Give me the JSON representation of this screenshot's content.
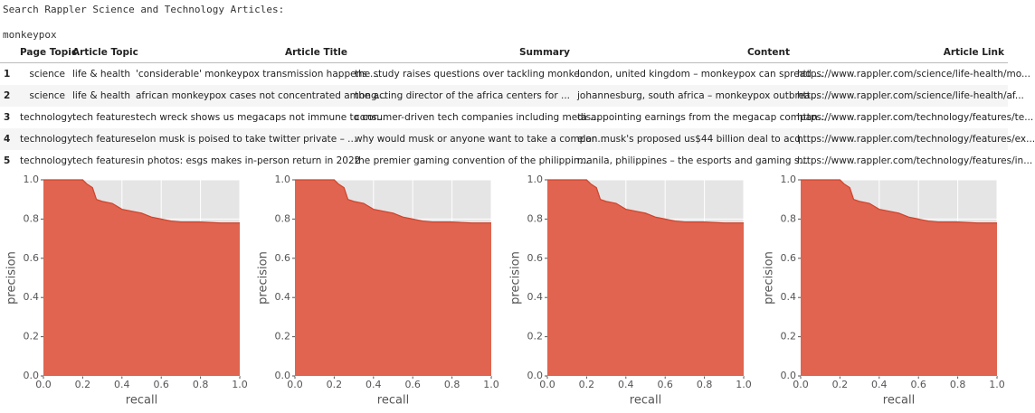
{
  "header": {
    "prompt": "Search Rappler Science and Technology Articles:",
    "query": "monkeypox"
  },
  "table": {
    "columns": [
      "Page Topic",
      "Article Topic",
      "Article Title",
      "Summary",
      "Content",
      "Article Link"
    ],
    "rows": [
      {
        "index": 1,
        "cells": [
          "science",
          "life & health",
          "'considerable' monkeypox transmission happens ...",
          "the study raises questions over tackling monke...",
          "london, united kingdom – monkeypox can spread ...",
          "https://www.rappler.com/science/life-health/mo..."
        ]
      },
      {
        "index": 2,
        "cells": [
          "science",
          "life & health",
          "african monkeypox cases not concentrated among...",
          "the acting director of the africa centers for ...",
          "johannesburg, south africa – monkeypox outbrea...",
          "https://www.rappler.com/science/life-health/af..."
        ]
      },
      {
        "index": 3,
        "cells": [
          "technology",
          "tech features",
          "tech wreck shows us megacaps not immune to cor...",
          "consumer-driven tech companies including meta ...",
          "disappointing earnings from the megacap compan...",
          "https://www.rappler.com/technology/features/te..."
        ]
      },
      {
        "index": 4,
        "cells": [
          "technology",
          "tech features",
          "elon musk is poised to take twitter private – ...",
          "why would musk or anyone want to take a compan...",
          "elon musk's proposed us$44 billion deal to acq...",
          "https://www.rappler.com/technology/features/ex..."
        ]
      },
      {
        "index": 5,
        "cells": [
          "technology",
          "tech features",
          "in photos: esgs makes in-person return in 2022",
          "the premier gaming convention of the philippin...",
          "manila, philippines – the esports and gaming s...",
          "https://www.rappler.com/technology/features/in..."
        ]
      }
    ]
  },
  "chart_data": [
    {
      "type": "area",
      "xlabel": "recall",
      "ylabel": "precision",
      "color": "#e0644f",
      "grid": true,
      "x": [
        0,
        0.05,
        0.1,
        0.15,
        0.2,
        0.22,
        0.25,
        0.27,
        0.3,
        0.35,
        0.4,
        0.45,
        0.5,
        0.55,
        0.6,
        0.65,
        0.7,
        0.8,
        0.9,
        1.0
      ],
      "values": [
        1,
        1,
        1,
        1,
        1,
        0.98,
        0.96,
        0.9,
        0.89,
        0.88,
        0.85,
        0.84,
        0.83,
        0.81,
        0.8,
        0.79,
        0.785,
        0.785,
        0.78,
        0.78
      ],
      "xlim": [
        0,
        1
      ],
      "ylim": [
        0,
        1
      ],
      "xticks": [
        {
          "value": 0,
          "label": "0.0"
        },
        0.2,
        0.4,
        0.6,
        0.8,
        {
          "value": 1,
          "label": "1.0"
        }
      ],
      "yticks": [
        {
          "value": 0,
          "label": "0.0"
        },
        0.2,
        0.4,
        0.6,
        0.8,
        {
          "value": 1,
          "label": "1.0"
        }
      ]
    },
    {
      "type": "area",
      "xlabel": "recall",
      "ylabel": "precision",
      "color": "#e0644f",
      "grid": true,
      "x": [
        0,
        0.05,
        0.1,
        0.15,
        0.2,
        0.22,
        0.25,
        0.27,
        0.3,
        0.35,
        0.4,
        0.45,
        0.5,
        0.55,
        0.6,
        0.65,
        0.7,
        0.8,
        0.9,
        1.0
      ],
      "values": [
        1,
        1,
        1,
        1,
        1,
        0.98,
        0.96,
        0.9,
        0.89,
        0.88,
        0.85,
        0.84,
        0.83,
        0.81,
        0.8,
        0.79,
        0.785,
        0.785,
        0.78,
        0.78
      ],
      "xlim": [
        0,
        1
      ],
      "ylim": [
        0,
        1
      ],
      "xticks": [
        {
          "value": 0,
          "label": "0.0"
        },
        0.2,
        0.4,
        0.6,
        0.8,
        {
          "value": 1,
          "label": "1.0"
        }
      ],
      "yticks": [
        {
          "value": 0,
          "label": "0.0"
        },
        0.2,
        0.4,
        0.6,
        0.8,
        {
          "value": 1,
          "label": "1.0"
        }
      ]
    },
    {
      "type": "area",
      "xlabel": "recall",
      "ylabel": "precision",
      "color": "#e0644f",
      "grid": true,
      "x": [
        0,
        0.05,
        0.1,
        0.15,
        0.2,
        0.22,
        0.25,
        0.27,
        0.3,
        0.35,
        0.4,
        0.45,
        0.5,
        0.55,
        0.6,
        0.65,
        0.7,
        0.8,
        0.9,
        1.0
      ],
      "values": [
        1,
        1,
        1,
        1,
        1,
        0.98,
        0.96,
        0.9,
        0.89,
        0.88,
        0.85,
        0.84,
        0.83,
        0.81,
        0.8,
        0.79,
        0.785,
        0.785,
        0.78,
        0.78
      ],
      "xlim": [
        0,
        1
      ],
      "ylim": [
        0,
        1
      ],
      "xticks": [
        {
          "value": 0,
          "label": "0.0"
        },
        0.2,
        0.4,
        0.6,
        0.8,
        {
          "value": 1,
          "label": "1.0"
        }
      ],
      "yticks": [
        {
          "value": 0,
          "label": "0.0"
        },
        0.2,
        0.4,
        0.6,
        0.8,
        {
          "value": 1,
          "label": "1.0"
        }
      ]
    },
    {
      "type": "area",
      "xlabel": "recall",
      "ylabel": "precision",
      "color": "#e0644f",
      "grid": true,
      "x": [
        0,
        0.05,
        0.1,
        0.15,
        0.2,
        0.22,
        0.25,
        0.27,
        0.3,
        0.35,
        0.4,
        0.45,
        0.5,
        0.55,
        0.6,
        0.65,
        0.7,
        0.8,
        0.9,
        1.0
      ],
      "values": [
        1,
        1,
        1,
        1,
        1,
        0.98,
        0.96,
        0.9,
        0.89,
        0.88,
        0.85,
        0.84,
        0.83,
        0.81,
        0.8,
        0.79,
        0.785,
        0.785,
        0.78,
        0.78
      ],
      "xlim": [
        0,
        1
      ],
      "ylim": [
        0,
        1
      ],
      "xticks": [
        {
          "value": 0,
          "label": "0.0"
        },
        0.2,
        0.4,
        0.6,
        0.8,
        {
          "value": 1,
          "label": "1.0"
        }
      ],
      "yticks": [
        {
          "value": 0,
          "label": "0.0"
        },
        0.2,
        0.4,
        0.6,
        0.8,
        {
          "value": 1,
          "label": "1.0"
        }
      ]
    }
  ]
}
